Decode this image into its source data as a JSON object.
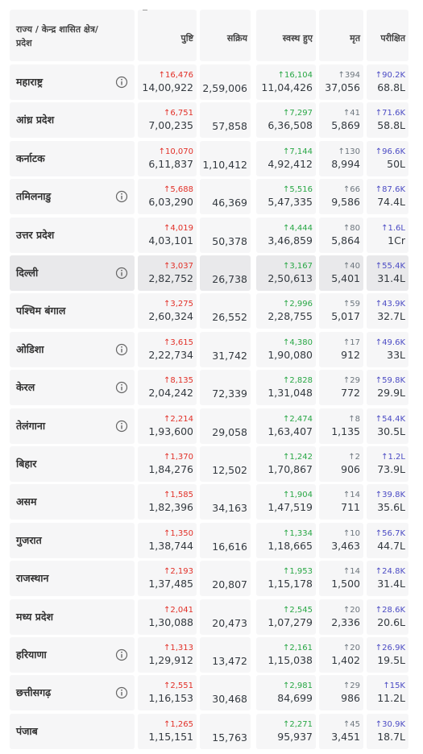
{
  "header": [
    "राज्य / केन्द्र शासित क्षेत्र/ प्रदेश",
    "पुष्टि",
    "सक्रिय",
    "स्वस्थ हुए",
    "मृत",
    "परीक्षित"
  ],
  "rows": [
    {
      "state": "महाराष्ट्र",
      "info": true,
      "confirmed": {
        "delta": "16,476",
        "total": "14,00,922"
      },
      "active": "2,59,006",
      "recovered": {
        "delta": "16,104",
        "total": "11,04,426"
      },
      "deaths": {
        "delta": "394",
        "total": "37,056"
      },
      "tested": {
        "delta": "90.2K",
        "total": "68.8L"
      }
    },
    {
      "state": "आंध्र प्रदेश",
      "info": false,
      "confirmed": {
        "delta": "6,751",
        "total": "7,00,235"
      },
      "active": "57,858",
      "recovered": {
        "delta": "7,297",
        "total": "6,36,508"
      },
      "deaths": {
        "delta": "41",
        "total": "5,869"
      },
      "tested": {
        "delta": "71.6K",
        "total": "58.8L"
      }
    },
    {
      "state": "कर्नाटक",
      "info": false,
      "confirmed": {
        "delta": "10,070",
        "total": "6,11,837"
      },
      "active": "1,10,412",
      "recovered": {
        "delta": "7,144",
        "total": "4,92,412"
      },
      "deaths": {
        "delta": "130",
        "total": "8,994"
      },
      "tested": {
        "delta": "96.6K",
        "total": "50L"
      }
    },
    {
      "state": "तमिलनाडु",
      "info": true,
      "confirmed": {
        "delta": "5,688",
        "total": "6,03,290"
      },
      "active": "46,369",
      "recovered": {
        "delta": "5,516",
        "total": "5,47,335"
      },
      "deaths": {
        "delta": "66",
        "total": "9,586"
      },
      "tested": {
        "delta": "87.6K",
        "total": "74.4L"
      }
    },
    {
      "state": "उत्तर प्रदेश",
      "info": false,
      "confirmed": {
        "delta": "4,019",
        "total": "4,03,101"
      },
      "active": "50,378",
      "recovered": {
        "delta": "4,444",
        "total": "3,46,859"
      },
      "deaths": {
        "delta": "80",
        "total": "5,864"
      },
      "tested": {
        "delta": "1.6L",
        "total": "1Cr"
      }
    },
    {
      "state": "दिल्ली",
      "info": true,
      "highlight": true,
      "confirmed": {
        "delta": "3,037",
        "total": "2,82,752"
      },
      "active": "26,738",
      "recovered": {
        "delta": "3,167",
        "total": "2,50,613"
      },
      "deaths": {
        "delta": "40",
        "total": "5,401"
      },
      "tested": {
        "delta": "55.4K",
        "total": "31.4L"
      }
    },
    {
      "state": "पश्चिम बंगाल",
      "info": false,
      "confirmed": {
        "delta": "3,275",
        "total": "2,60,324"
      },
      "active": "26,552",
      "recovered": {
        "delta": "2,996",
        "total": "2,28,755"
      },
      "deaths": {
        "delta": "59",
        "total": "5,017"
      },
      "tested": {
        "delta": "43.9K",
        "total": "32.7L"
      }
    },
    {
      "state": "ओडिशा",
      "info": true,
      "confirmed": {
        "delta": "3,615",
        "total": "2,22,734"
      },
      "active": "31,742",
      "recovered": {
        "delta": "4,380",
        "total": "1,90,080"
      },
      "deaths": {
        "delta": "17",
        "total": "912"
      },
      "tested": {
        "delta": "49.6K",
        "total": "33L"
      }
    },
    {
      "state": "केरल",
      "info": true,
      "confirmed": {
        "delta": "8,135",
        "total": "2,04,242"
      },
      "active": "72,339",
      "recovered": {
        "delta": "2,828",
        "total": "1,31,048"
      },
      "deaths": {
        "delta": "29",
        "total": "772"
      },
      "tested": {
        "delta": "59.8K",
        "total": "29.9L"
      }
    },
    {
      "state": "तेलंगाना",
      "info": true,
      "confirmed": {
        "delta": "2,214",
        "total": "1,93,600"
      },
      "active": "29,058",
      "recovered": {
        "delta": "2,474",
        "total": "1,63,407"
      },
      "deaths": {
        "delta": "8",
        "total": "1,135"
      },
      "tested": {
        "delta": "54.4K",
        "total": "30.5L"
      }
    },
    {
      "state": "बिहार",
      "info": false,
      "confirmed": {
        "delta": "1,370",
        "total": "1,84,276"
      },
      "active": "12,502",
      "recovered": {
        "delta": "1,242",
        "total": "1,70,867"
      },
      "deaths": {
        "delta": "2",
        "total": "906"
      },
      "tested": {
        "delta": "1.2L",
        "total": "73.9L"
      }
    },
    {
      "state": "असम",
      "info": false,
      "confirmed": {
        "delta": "1,585",
        "total": "1,82,396"
      },
      "active": "34,163",
      "recovered": {
        "delta": "1,904",
        "total": "1,47,519"
      },
      "deaths": {
        "delta": "14",
        "total": "711"
      },
      "tested": {
        "delta": "39.8K",
        "total": "35.6L"
      }
    },
    {
      "state": "गुजरात",
      "info": false,
      "confirmed": {
        "delta": "1,350",
        "total": "1,38,744"
      },
      "active": "16,616",
      "recovered": {
        "delta": "1,334",
        "total": "1,18,665"
      },
      "deaths": {
        "delta": "10",
        "total": "3,463"
      },
      "tested": {
        "delta": "56.7K",
        "total": "44.7L"
      }
    },
    {
      "state": "राजस्थान",
      "info": false,
      "confirmed": {
        "delta": "2,193",
        "total": "1,37,485"
      },
      "active": "20,807",
      "recovered": {
        "delta": "1,953",
        "total": "1,15,178"
      },
      "deaths": {
        "delta": "14",
        "total": "1,500"
      },
      "tested": {
        "delta": "24.8K",
        "total": "31.4L"
      }
    },
    {
      "state": "मध्य प्रदेश",
      "info": false,
      "confirmed": {
        "delta": "2,041",
        "total": "1,30,088"
      },
      "active": "20,473",
      "recovered": {
        "delta": "2,545",
        "total": "1,07,279"
      },
      "deaths": {
        "delta": "20",
        "total": "2,336"
      },
      "tested": {
        "delta": "28.6K",
        "total": "20.6L"
      }
    },
    {
      "state": "हरियाणा",
      "info": true,
      "confirmed": {
        "delta": "1,313",
        "total": "1,29,912"
      },
      "active": "13,472",
      "recovered": {
        "delta": "2,161",
        "total": "1,15,038"
      },
      "deaths": {
        "delta": "20",
        "total": "1,402"
      },
      "tested": {
        "delta": "26.9K",
        "total": "19.5L"
      }
    },
    {
      "state": "छत्तीसगढ़",
      "info": true,
      "confirmed": {
        "delta": "2,551",
        "total": "1,16,153"
      },
      "active": "30,468",
      "recovered": {
        "delta": "2,981",
        "total": "84,699"
      },
      "deaths": {
        "delta": "29",
        "total": "986"
      },
      "tested": {
        "delta": "15K",
        "total": "11.2L"
      }
    },
    {
      "state": "पंजाब",
      "info": false,
      "confirmed": {
        "delta": "1,265",
        "total": "1,15,151"
      },
      "active": "15,763",
      "recovered": {
        "delta": "2,271",
        "total": "95,937"
      },
      "deaths": {
        "delta": "45",
        "total": "3,451"
      },
      "tested": {
        "delta": "30.9K",
        "total": "18.7L"
      }
    }
  ]
}
